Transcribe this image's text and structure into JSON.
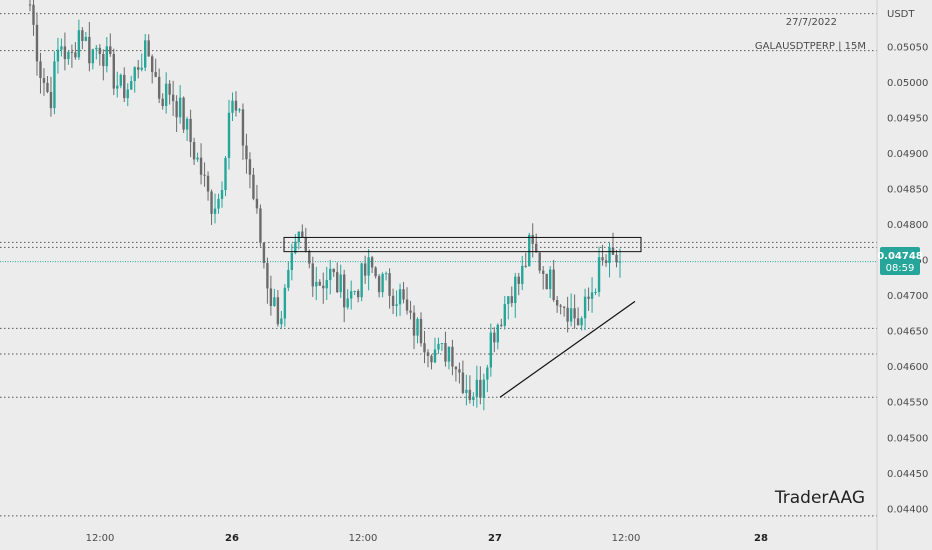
{
  "chart_data": {
    "type": "candlestick",
    "symbol": "GALAUSDTPERP",
    "interval": "15M",
    "date": "27/7/2022",
    "currency": "USDT",
    "watermark": "TraderAAG",
    "price_label": "0.04748",
    "countdown": "08:59",
    "y_ticks": [
      "0.05050",
      "0.05000",
      "0.04950",
      "0.04900",
      "0.04850",
      "0.04800",
      "0.04750",
      "0.04700",
      "0.04650",
      "0.04600",
      "0.04550",
      "0.04500",
      "0.04450",
      "0.04400"
    ],
    "x_ticks": [
      {
        "label": "12:00",
        "bold": false
      },
      {
        "label": "26",
        "bold": true
      },
      {
        "label": "12:00",
        "bold": false
      },
      {
        "label": "27",
        "bold": true
      },
      {
        "label": "12:00",
        "bold": false
      },
      {
        "label": "28",
        "bold": true
      }
    ],
    "ylim": [
      0.0438,
      0.05105
    ],
    "horizontal_levels": [
      0.05097,
      0.05045,
      0.04775,
      0.04768,
      0.04654,
      0.04618,
      0.04557,
      0.0439
    ],
    "current_price": 0.04748,
    "resistance_zone": [
      0.04782,
      0.04762
    ],
    "trendline": [
      0.04557,
      0.04692
    ],
    "path_points": [
      [
        0.0511
      ],
      [
        0.0502
      ],
      [
        0.04975
      ],
      [
        0.0506
      ],
      [
        0.05025
      ],
      [
        0.0508
      ],
      [
        0.0504
      ],
      [
        0.05055
      ],
      [
        0.0502
      ],
      [
        0.0499
      ],
      [
        0.04995
      ],
      [
        0.05035
      ],
      [
        0.0504
      ],
      [
        0.0498
      ],
      [
        0.0499
      ],
      [
        0.0496
      ],
      [
        0.0492
      ],
      [
        0.0488
      ],
      [
        0.0483
      ],
      [
        0.0484
      ],
      [
        0.04975
      ],
      [
        0.0494
      ],
      [
        0.0487
      ],
      [
        0.0478
      ],
      [
        0.047
      ],
      [
        0.0467
      ],
      [
        0.0473
      ],
      [
        0.0478
      ],
      [
        0.0474
      ],
      [
        0.0472
      ],
      [
        0.0473
      ],
      [
        0.0471
      ],
      [
        0.047
      ],
      [
        0.0472
      ],
      [
        0.0474
      ],
      [
        0.0472
      ],
      [
        0.0471
      ],
      [
        0.047
      ],
      [
        0.0466
      ],
      [
        0.0465
      ],
      [
        0.0463
      ],
      [
        0.04615
      ],
      [
        0.0463
      ],
      [
        0.0459
      ],
      [
        0.04565
      ],
      [
        0.0457
      ],
      [
        0.0464
      ],
      [
        0.0467
      ],
      [
        0.0471
      ],
      [
        0.0472
      ],
      [
        0.0477
      ],
      [
        0.04745
      ],
      [
        0.0472
      ],
      [
        0.047
      ],
      [
        0.0468
      ],
      [
        0.0466
      ],
      [
        0.047
      ],
      [
        0.0474
      ],
      [
        0.0475
      ],
      [
        0.04748
      ]
    ]
  }
}
